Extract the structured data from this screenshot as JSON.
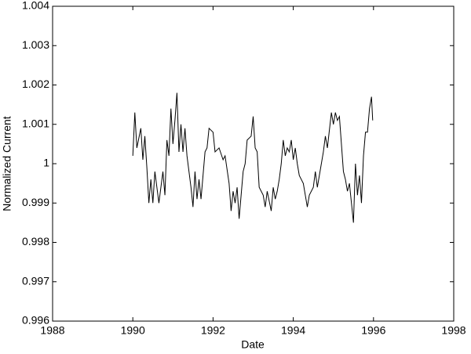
{
  "chart_data": {
    "type": "line",
    "xlabel": "Date",
    "ylabel": "Normalized Current",
    "xlim": [
      1988,
      1998
    ],
    "xticks": [
      1988,
      1990,
      1992,
      1994,
      1996,
      1998
    ],
    "ylim": [
      0.996,
      1.004
    ],
    "yticks": [
      0.996,
      0.997,
      0.998,
      0.999,
      1,
      1.001,
      1.002,
      1.003,
      1.004
    ],
    "series": [
      {
        "color": "#000000",
        "x": [
          1990.0,
          1990.05,
          1990.1,
          1990.2,
          1990.25,
          1990.3,
          1990.35,
          1990.4,
          1990.45,
          1990.5,
          1990.55,
          1990.65,
          1990.75,
          1990.8,
          1990.85,
          1990.9,
          1990.95,
          1991.0,
          1991.05,
          1991.1,
          1991.15,
          1991.2,
          1991.25,
          1991.3,
          1991.35,
          1991.45,
          1991.5,
          1991.55,
          1991.6,
          1991.65,
          1991.7,
          1991.8,
          1991.85,
          1991.9,
          1992.0,
          1992.05,
          1992.15,
          1992.25,
          1992.3,
          1992.4,
          1992.45,
          1992.5,
          1992.55,
          1992.6,
          1992.65,
          1992.7,
          1992.75,
          1992.8,
          1992.85,
          1992.95,
          1993.0,
          1993.05,
          1993.1,
          1993.15,
          1993.25,
          1993.3,
          1993.35,
          1993.45,
          1993.5,
          1993.55,
          1993.6,
          1993.65,
          1993.7,
          1993.75,
          1993.8,
          1993.85,
          1993.9,
          1993.95,
          1994.0,
          1994.05,
          1994.1,
          1994.15,
          1994.25,
          1994.35,
          1994.4,
          1994.5,
          1994.55,
          1994.6,
          1994.7,
          1994.75,
          1994.8,
          1994.85,
          1994.95,
          1995.0,
          1995.05,
          1995.1,
          1995.15,
          1995.2,
          1995.25,
          1995.3,
          1995.35,
          1995.4,
          1995.45,
          1995.5,
          1995.55,
          1995.6,
          1995.65,
          1995.7,
          1995.75,
          1995.8,
          1995.85,
          1995.9,
          1995.95,
          1995.98
        ],
        "values": [
          1.0002,
          1.0013,
          1.0004,
          1.0009,
          1.0001,
          1.0007,
          0.9999,
          0.999,
          0.9996,
          0.999,
          0.9998,
          0.999,
          0.9998,
          0.9992,
          1.0006,
          1.0002,
          1.0014,
          1.0005,
          1.0011,
          1.0018,
          1.0003,
          1.001,
          1.0003,
          1.0009,
          1.0002,
          0.9994,
          0.9989,
          0.9998,
          0.9991,
          0.9996,
          0.9991,
          1.0003,
          1.0004,
          1.0009,
          1.0008,
          1.0003,
          1.0004,
          1.0001,
          1.0002,
          0.9995,
          0.9988,
          0.9993,
          0.999,
          0.9994,
          0.9986,
          0.9992,
          0.9998,
          1.0,
          1.0006,
          1.0007,
          1.0012,
          1.0004,
          1.0003,
          0.9994,
          0.9992,
          0.9989,
          0.9993,
          0.9988,
          0.9994,
          0.9991,
          0.9993,
          0.9996,
          1.0,
          1.0006,
          1.0002,
          1.0004,
          1.0003,
          1.0006,
          1.0001,
          1.0004,
          1.0,
          0.9997,
          0.9995,
          0.9989,
          0.9992,
          0.9994,
          0.9998,
          0.9994,
          1.0,
          1.0003,
          1.0007,
          1.0004,
          1.0013,
          1.001,
          1.0013,
          1.0011,
          1.0012,
          1.0005,
          0.9998,
          0.9996,
          0.9993,
          0.9995,
          0.999,
          0.9985,
          1.0,
          0.9992,
          0.9997,
          0.999,
          1.0002,
          1.0008,
          1.0008,
          1.0014,
          1.0017,
          1.0011
        ]
      }
    ]
  }
}
